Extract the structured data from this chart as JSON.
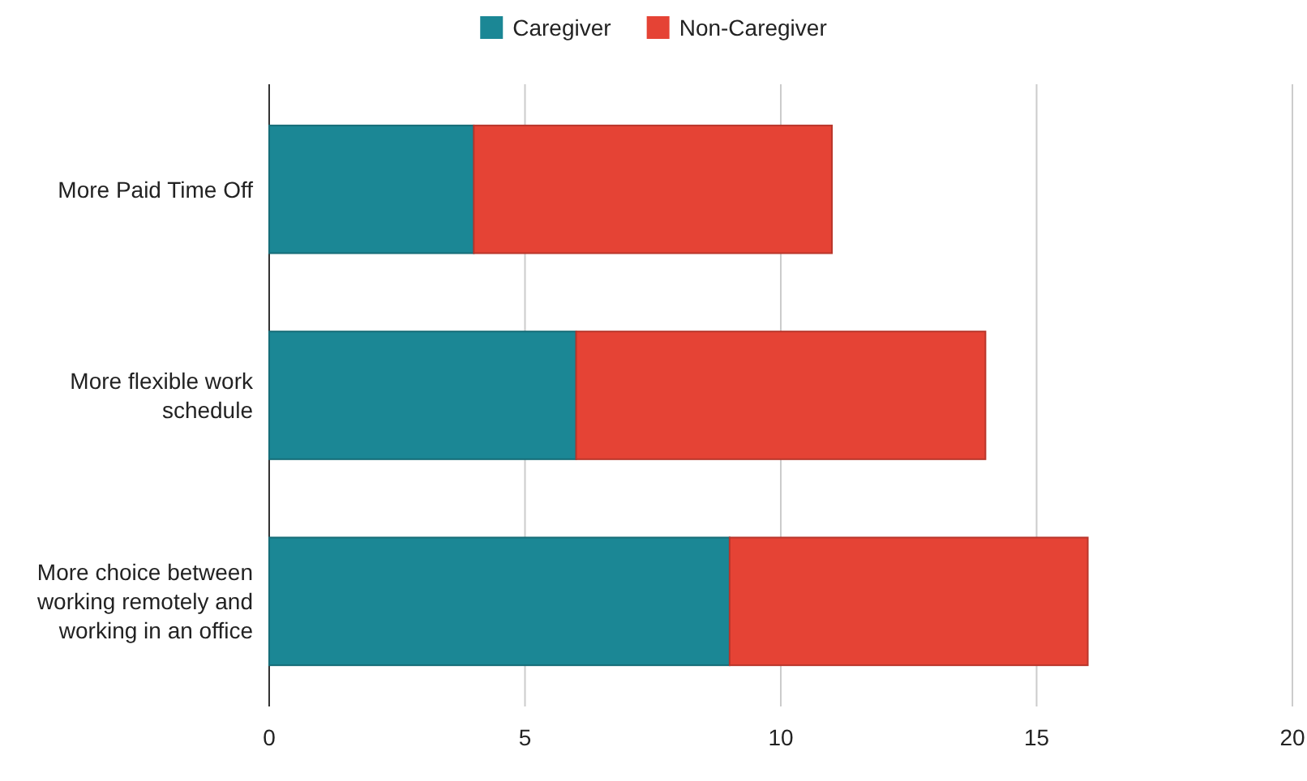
{
  "chart_data": {
    "type": "bar",
    "orientation": "horizontal",
    "stacked": true,
    "categories": [
      "More Paid Time Off",
      "More flexible work schedule",
      "More choice between working remotely and working in an office"
    ],
    "series": [
      {
        "name": "Caregiver",
        "color": "#1b8795",
        "values": [
          4,
          6,
          9
        ]
      },
      {
        "name": "Non-Caregiver",
        "color": "#e54335",
        "values": [
          7,
          8,
          7
        ]
      }
    ],
    "xlim": [
      0,
      20
    ],
    "xticks": [
      0,
      5,
      10,
      15,
      20
    ],
    "grid": "x",
    "legend": "top"
  }
}
